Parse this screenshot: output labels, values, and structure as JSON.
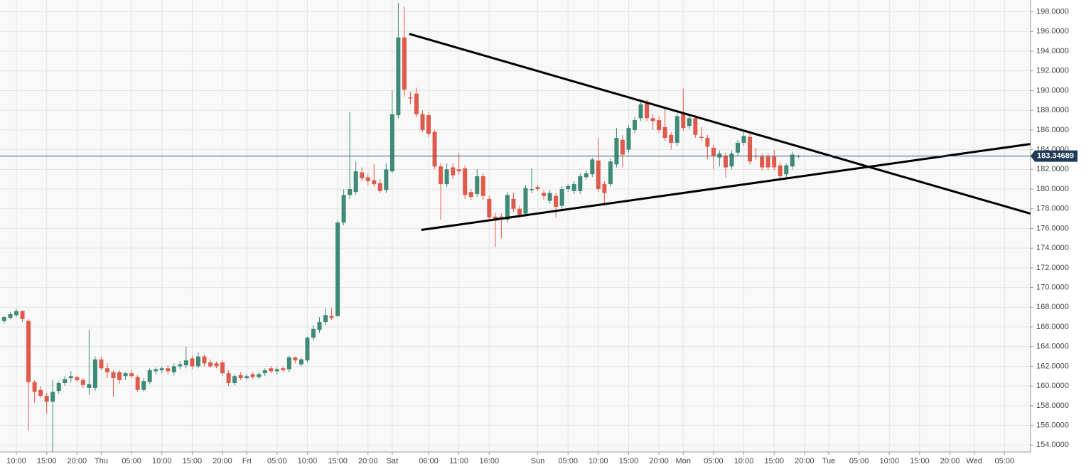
{
  "chart_data": {
    "type": "candlestick",
    "up_color": "#3d8b77",
    "down_color": "#e05a4b",
    "grid": true,
    "xlim": [
      -0.7,
      169.3
    ],
    "ylim": [
      153.3,
      199.2
    ],
    "yticks": [
      {
        "value": 154,
        "label": "154.0000"
      },
      {
        "value": 156,
        "label": "156.0000"
      },
      {
        "value": 158,
        "label": "158.0000"
      },
      {
        "value": 160,
        "label": "160.0000"
      },
      {
        "value": 162,
        "label": "162.0000"
      },
      {
        "value": 164,
        "label": "164.0000"
      },
      {
        "value": 166,
        "label": "166.0000"
      },
      {
        "value": 168,
        "label": "168.0000"
      },
      {
        "value": 170,
        "label": "170.0000"
      },
      {
        "value": 172,
        "label": "172.0000"
      },
      {
        "value": 174,
        "label": "174.0000"
      },
      {
        "value": 176,
        "label": "176.0000"
      },
      {
        "value": 178,
        "label": "178.0000"
      },
      {
        "value": 180,
        "label": "180.0000"
      },
      {
        "value": 182,
        "label": "182.0000"
      },
      {
        "value": 184,
        "label": "184.0000"
      },
      {
        "value": 186,
        "label": "186.0000"
      },
      {
        "value": 188,
        "label": "188.0000"
      },
      {
        "value": 190,
        "label": "190.0000"
      },
      {
        "value": 192,
        "label": "192.0000"
      },
      {
        "value": 194,
        "label": "194.0000"
      },
      {
        "value": 196,
        "label": "196.0000"
      },
      {
        "value": 198,
        "label": "198.0000"
      }
    ],
    "xticks": [
      {
        "value": 2,
        "label": "10:00"
      },
      {
        "value": 7,
        "label": "15:00"
      },
      {
        "value": 12,
        "label": "20:00"
      },
      {
        "value": 16,
        "label": "Thu"
      },
      {
        "value": 21,
        "label": "05:00"
      },
      {
        "value": 26,
        "label": "10:00"
      },
      {
        "value": 31,
        "label": "15:00"
      },
      {
        "value": 36,
        "label": "20:00"
      },
      {
        "value": 40,
        "label": "Fri"
      },
      {
        "value": 45,
        "label": "05:00"
      },
      {
        "value": 50,
        "label": "10:00"
      },
      {
        "value": 55,
        "label": "15:00"
      },
      {
        "value": 60,
        "label": "20:00"
      },
      {
        "value": 64,
        "label": "Sat"
      },
      {
        "value": 70,
        "label": "06:00"
      },
      {
        "value": 75,
        "label": "11:00"
      },
      {
        "value": 80,
        "label": "16:00"
      },
      {
        "value": 88,
        "label": "Sun"
      },
      {
        "value": 93,
        "label": "05:00"
      },
      {
        "value": 98,
        "label": "10:00"
      },
      {
        "value": 103,
        "label": "15:00"
      },
      {
        "value": 108,
        "label": "20:00"
      },
      {
        "value": 112,
        "label": "Mon"
      },
      {
        "value": 117,
        "label": "05:00"
      },
      {
        "value": 122,
        "label": "10:00"
      },
      {
        "value": 127,
        "label": "15:00"
      },
      {
        "value": 132,
        "label": "20:00"
      },
      {
        "value": 136,
        "label": "Tue"
      },
      {
        "value": 141,
        "label": "05:00"
      },
      {
        "value": 146,
        "label": "10:00"
      },
      {
        "value": 151,
        "label": "15:00"
      },
      {
        "value": 156,
        "label": "20:00"
      },
      {
        "value": 160,
        "label": "Wed"
      },
      {
        "value": 165,
        "label": "05:00"
      }
    ],
    "last_price": 183.34689,
    "trendlines": [
      {
        "color": "#000000",
        "x": [
          66.8,
          169.3
        ],
        "y": [
          195.76,
          177.5
        ]
      },
      {
        "color": "#000000",
        "x": [
          68.8,
          169.3
        ],
        "y": [
          175.85,
          184.58
        ]
      }
    ],
    "x": [
      0,
      1,
      2,
      3,
      4,
      5,
      6,
      7,
      8,
      9,
      10,
      11,
      12,
      13,
      14,
      15,
      16,
      17,
      18,
      19,
      20,
      21,
      22,
      23,
      24,
      25,
      26,
      27,
      28,
      29,
      30,
      31,
      32,
      33,
      34,
      35,
      36,
      37,
      38,
      39,
      40,
      41,
      42,
      43,
      44,
      45,
      46,
      47,
      48,
      49,
      50,
      51,
      52,
      53,
      54,
      55,
      56,
      57,
      58,
      59,
      60,
      61,
      62,
      63,
      64,
      65,
      66,
      67,
      68,
      69,
      70,
      71,
      72,
      73,
      74,
      75,
      76,
      77,
      78,
      79,
      80,
      81,
      82,
      83,
      84,
      85,
      86,
      87,
      88,
      89,
      90,
      91,
      92,
      93,
      94,
      95,
      96,
      97,
      98,
      99,
      100,
      101,
      102,
      103,
      104,
      105,
      106,
      107,
      108,
      109,
      110,
      111,
      112,
      113,
      114,
      115,
      116,
      117,
      118,
      119,
      120,
      121,
      122,
      123,
      124,
      125,
      126,
      127,
      128,
      129,
      130,
      131
    ],
    "ohlc": [
      [
        166.6,
        167.1,
        166.4,
        167.0
      ],
      [
        166.9,
        167.5,
        166.8,
        167.3
      ],
      [
        167.2,
        167.8,
        167.0,
        167.6
      ],
      [
        167.6,
        167.7,
        166.5,
        166.8
      ],
      [
        166.6,
        166.8,
        155.5,
        160.4
      ],
      [
        160.4,
        160.6,
        158.3,
        159.4
      ],
      [
        159.6,
        160.0,
        158.8,
        159.0
      ],
      [
        159.0,
        159.3,
        157.2,
        158.4
      ],
      [
        158.4,
        160.6,
        153.3,
        159.4
      ],
      [
        159.5,
        160.5,
        159.2,
        160.3
      ],
      [
        160.3,
        161.0,
        160.0,
        160.7
      ],
      [
        160.8,
        161.5,
        160.4,
        161.0
      ],
      [
        160.9,
        161.0,
        160.4,
        160.6
      ],
      [
        160.6,
        160.8,
        159.8,
        160.1
      ],
      [
        159.8,
        165.7,
        159.1,
        160.2
      ],
      [
        159.8,
        163.0,
        159.5,
        162.7
      ],
      [
        162.7,
        163.0,
        161.6,
        161.8
      ],
      [
        161.8,
        162.3,
        160.8,
        161.4
      ],
      [
        161.4,
        161.6,
        158.9,
        160.8
      ],
      [
        161.4,
        161.6,
        160.2,
        160.6
      ],
      [
        161.0,
        161.4,
        160.6,
        161.3
      ],
      [
        161.3,
        161.6,
        160.8,
        161.0
      ],
      [
        160.9,
        161.1,
        159.4,
        159.6
      ],
      [
        159.6,
        160.8,
        159.4,
        160.5
      ],
      [
        160.4,
        161.8,
        160.2,
        161.6
      ],
      [
        161.5,
        161.9,
        161.2,
        161.7
      ],
      [
        161.6,
        162.0,
        161.3,
        161.8
      ],
      [
        161.8,
        162.1,
        161.2,
        161.5
      ],
      [
        161.4,
        162.3,
        161.1,
        162.0
      ],
      [
        162.0,
        162.5,
        161.7,
        162.2
      ],
      [
        162.1,
        164.0,
        161.8,
        162.6
      ],
      [
        162.8,
        163.1,
        161.7,
        162.0
      ],
      [
        162.0,
        163.4,
        161.8,
        163.0
      ],
      [
        163.0,
        163.2,
        162.0,
        162.3
      ],
      [
        162.4,
        162.7,
        161.8,
        162.0
      ],
      [
        162.3,
        162.5,
        161.8,
        162.0
      ],
      [
        162.4,
        162.6,
        161.0,
        161.3
      ],
      [
        161.3,
        161.6,
        160.0,
        160.3
      ],
      [
        160.3,
        161.2,
        160.1,
        161.0
      ],
      [
        161.1,
        161.4,
        160.6,
        160.8
      ],
      [
        160.8,
        161.2,
        160.6,
        161.0
      ],
      [
        161.2,
        161.4,
        160.7,
        160.9
      ],
      [
        160.9,
        161.4,
        160.7,
        161.2
      ],
      [
        161.3,
        161.8,
        161.0,
        161.6
      ],
      [
        161.8,
        162.0,
        161.3,
        161.5
      ],
      [
        161.5,
        161.9,
        161.2,
        161.7
      ],
      [
        161.8,
        162.0,
        161.4,
        161.6
      ],
      [
        161.7,
        163.1,
        161.4,
        162.9
      ],
      [
        162.9,
        163.0,
        162.3,
        162.6
      ],
      [
        162.2,
        162.9,
        162.0,
        162.7
      ],
      [
        162.6,
        165.0,
        162.4,
        164.9
      ],
      [
        164.9,
        166.2,
        164.6,
        165.8
      ],
      [
        165.7,
        167.0,
        165.4,
        166.5
      ],
      [
        166.5,
        167.9,
        166.2,
        167.2
      ],
      [
        167.1,
        167.9,
        166.7,
        166.9
      ],
      [
        167.1,
        176.8,
        167.0,
        176.6
      ],
      [
        176.6,
        180.0,
        176.3,
        179.4
      ],
      [
        179.4,
        187.8,
        179.0,
        180.0
      ],
      [
        179.7,
        182.8,
        179.4,
        181.8
      ],
      [
        181.7,
        182.2,
        180.8,
        181.1
      ],
      [
        181.2,
        181.6,
        180.4,
        180.8
      ],
      [
        180.9,
        182.5,
        180.2,
        180.5
      ],
      [
        180.6,
        181.0,
        179.6,
        179.8
      ],
      [
        179.9,
        182.6,
        179.6,
        182.0
      ],
      [
        181.8,
        190.0,
        181.6,
        187.6
      ],
      [
        187.5,
        198.9,
        187.2,
        195.4
      ],
      [
        195.4,
        198.5,
        189.4,
        190.1
      ],
      [
        189.3,
        189.9,
        188.6,
        189.2
      ],
      [
        189.7,
        190.3,
        187.3,
        187.6
      ],
      [
        187.6,
        188.0,
        185.8,
        186.0
      ],
      [
        187.5,
        187.8,
        185.3,
        185.6
      ],
      [
        185.8,
        186.0,
        182.0,
        182.3
      ],
      [
        182.3,
        182.6,
        176.9,
        180.5
      ],
      [
        180.5,
        182.6,
        180.2,
        182.0
      ],
      [
        182.2,
        182.6,
        181.0,
        181.4
      ],
      [
        182.0,
        183.7,
        181.4,
        181.8
      ],
      [
        182.1,
        182.4,
        179.0,
        179.4
      ],
      [
        179.7,
        180.0,
        178.9,
        179.2
      ],
      [
        179.5,
        182.0,
        179.2,
        181.3
      ],
      [
        181.3,
        181.6,
        178.9,
        179.3
      ],
      [
        179.0,
        179.3,
        176.8,
        177.1
      ],
      [
        177.2,
        177.6,
        174.1,
        176.8
      ],
      [
        177.2,
        177.5,
        175.0,
        177.0
      ],
      [
        176.9,
        179.7,
        176.6,
        179.4
      ],
      [
        179.0,
        179.6,
        177.7,
        178.0
      ],
      [
        178.0,
        178.3,
        177.1,
        177.4
      ],
      [
        177.5,
        180.4,
        177.2,
        180.1
      ],
      [
        179.9,
        182.1,
        179.6,
        180.0
      ],
      [
        180.2,
        180.4,
        179.8,
        180.0
      ],
      [
        179.6,
        179.9,
        178.9,
        179.3
      ],
      [
        178.8,
        179.9,
        178.5,
        179.6
      ],
      [
        179.3,
        179.6,
        177.1,
        178.2
      ],
      [
        178.3,
        180.3,
        178.0,
        180.0
      ],
      [
        180.0,
        180.5,
        179.7,
        180.3
      ],
      [
        179.8,
        180.8,
        179.5,
        180.5
      ],
      [
        179.8,
        181.6,
        179.5,
        181.3
      ],
      [
        181.2,
        181.9,
        180.9,
        181.6
      ],
      [
        181.5,
        183.2,
        181.2,
        183.0
      ],
      [
        182.9,
        185.2,
        179.7,
        180.0
      ],
      [
        180.5,
        180.8,
        178.3,
        179.6
      ],
      [
        180.5,
        183.1,
        180.2,
        182.8
      ],
      [
        182.5,
        186.2,
        182.2,
        185.2
      ],
      [
        185.0,
        185.5,
        182.2,
        183.5
      ],
      [
        184.0,
        186.5,
        183.7,
        186.2
      ],
      [
        186.0,
        187.3,
        185.7,
        187.0
      ],
      [
        187.2,
        188.9,
        186.9,
        188.6
      ],
      [
        188.8,
        189.1,
        186.9,
        187.2
      ],
      [
        187.2,
        187.6,
        186.0,
        186.9
      ],
      [
        187.0,
        187.4,
        185.7,
        186.0
      ],
      [
        186.3,
        188.2,
        184.9,
        185.2
      ],
      [
        185.5,
        185.8,
        184.0,
        184.7
      ],
      [
        184.7,
        187.7,
        184.4,
        187.4
      ],
      [
        187.6,
        190.2,
        185.9,
        186.2
      ],
      [
        186.4,
        187.5,
        186.1,
        187.2
      ],
      [
        187.2,
        187.5,
        185.2,
        185.5
      ],
      [
        185.3,
        186.3,
        184.9,
        185.2
      ],
      [
        185.2,
        185.5,
        183.0,
        184.3
      ],
      [
        184.2,
        184.5,
        182.0,
        183.4
      ],
      [
        183.2,
        183.9,
        182.3,
        183.6
      ],
      [
        183.4,
        183.7,
        181.2,
        182.2
      ],
      [
        182.3,
        183.9,
        182.0,
        183.6
      ],
      [
        183.7,
        185.0,
        183.4,
        184.7
      ],
      [
        184.7,
        185.9,
        184.4,
        185.4
      ],
      [
        185.3,
        185.6,
        182.5,
        182.8
      ],
      [
        183.4,
        184.2,
        183.0,
        183.3
      ],
      [
        183.3,
        183.6,
        181.9,
        182.2
      ],
      [
        183.3,
        183.6,
        181.9,
        182.2
      ],
      [
        183.3,
        184.0,
        181.9,
        182.2
      ],
      [
        182.4,
        182.7,
        181.0,
        181.3
      ],
      [
        181.5,
        182.6,
        181.2,
        182.4
      ],
      [
        182.3,
        183.8,
        182.0,
        183.5
      ],
      [
        183.3,
        183.5,
        183.1,
        183.4
      ]
    ]
  }
}
